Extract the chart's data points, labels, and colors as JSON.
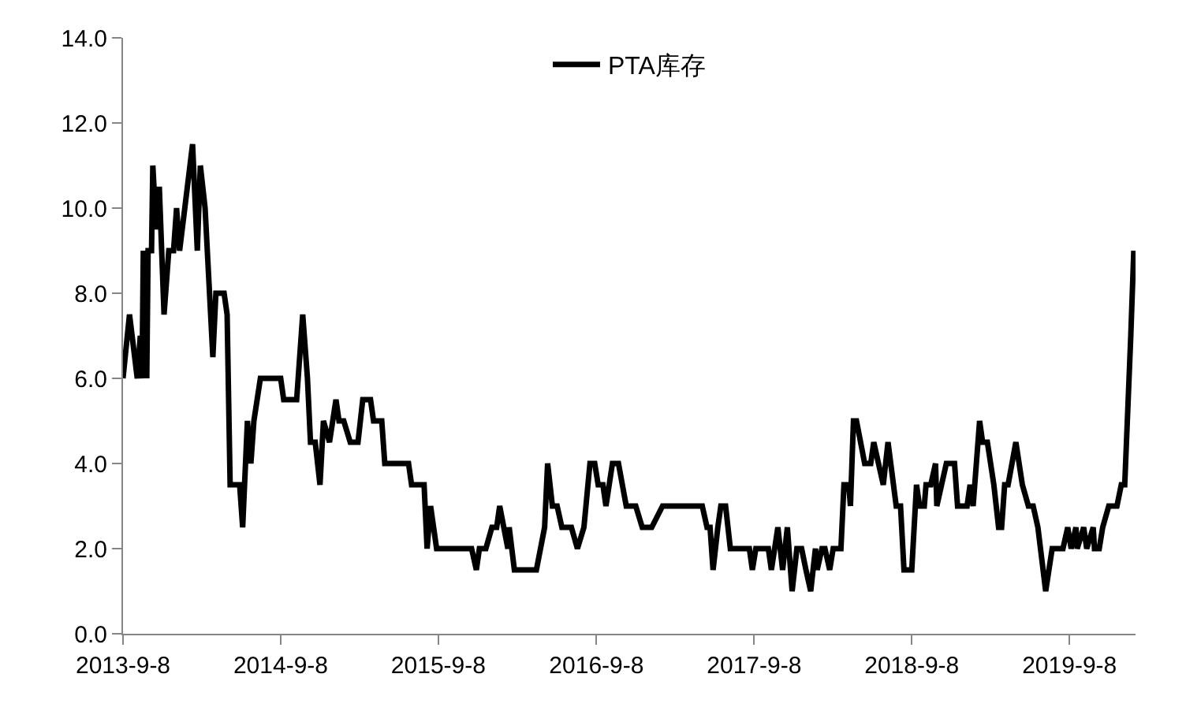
{
  "chart_data": {
    "type": "line",
    "x": [
      "2013-09-08",
      "2013-09-23",
      "2013-10-11",
      "2013-10-18",
      "2013-10-22",
      "2013-10-25",
      "2013-11-02",
      "2013-11-05",
      "2013-11-13",
      "2013-11-16",
      "2013-11-24",
      "2013-12-01",
      "2013-12-12",
      "2013-12-23",
      "2014-01-03",
      "2014-01-10",
      "2014-01-17",
      "2014-02-16",
      "2014-02-27",
      "2014-03-06",
      "2014-03-17",
      "2014-04-04",
      "2014-04-11",
      "2014-04-30",
      "2014-05-07",
      "2014-05-14",
      "2014-06-05",
      "2014-06-12",
      "2014-06-23",
      "2014-07-01",
      "2014-07-08",
      "2014-07-23",
      "2014-09-08",
      "2014-09-15",
      "2014-10-15",
      "2014-10-29",
      "2014-11-09",
      "2014-11-16",
      "2014-11-27",
      "2014-12-08",
      "2014-12-16",
      "2014-12-30",
      "2015-01-14",
      "2015-01-21",
      "2015-02-01",
      "2015-02-16",
      "2015-03-06",
      "2015-03-17",
      "2015-04-04",
      "2015-04-11",
      "2015-04-30",
      "2015-05-07",
      "2015-07-01",
      "2015-07-08",
      "2015-08-06",
      "2015-08-13",
      "2015-08-21",
      "2015-09-04",
      "2015-11-24",
      "2015-12-05",
      "2015-12-12",
      "2015-12-27",
      "2016-01-10",
      "2016-01-21",
      "2016-01-28",
      "2016-02-16",
      "2016-02-19",
      "2016-03-02",
      "2016-04-22",
      "2016-05-11",
      "2016-05-18",
      "2016-05-29",
      "2016-06-09",
      "2016-06-20",
      "2016-07-12",
      "2016-07-26",
      "2016-08-10",
      "2016-08-24",
      "2016-09-04",
      "2016-09-12",
      "2016-09-23",
      "2016-09-30",
      "2016-10-15",
      "2016-10-29",
      "2016-11-16",
      "2016-12-08",
      "2016-12-23",
      "2017-01-14",
      "2017-02-08",
      "2017-05-11",
      "2017-05-22",
      "2017-05-29",
      "2017-06-05",
      "2017-06-16",
      "2017-06-23",
      "2017-07-04",
      "2017-07-15",
      "2017-08-28",
      "2017-09-04",
      "2017-09-12",
      "2017-10-11",
      "2017-10-18",
      "2017-11-02",
      "2017-11-13",
      "2017-11-24",
      "2017-12-05",
      "2017-12-16",
      "2017-12-27",
      "2018-01-06",
      "2018-01-17",
      "2018-01-28",
      "2018-02-01",
      "2018-02-12",
      "2018-02-19",
      "2018-03-02",
      "2018-03-10",
      "2018-03-28",
      "2018-04-04",
      "2018-04-15",
      "2018-04-19",
      "2018-04-26",
      "2018-05-03",
      "2018-05-22",
      "2018-06-05",
      "2018-06-12",
      "2018-06-23",
      "2018-07-04",
      "2018-07-15",
      "2018-08-03",
      "2018-08-13",
      "2018-08-21",
      "2018-09-08",
      "2018-09-19",
      "2018-09-26",
      "2018-10-07",
      "2018-10-11",
      "2018-10-22",
      "2018-11-02",
      "2018-11-05",
      "2018-11-16",
      "2018-11-27",
      "2018-12-16",
      "2018-12-23",
      "2019-01-14",
      "2019-01-21",
      "2019-01-28",
      "2019-02-12",
      "2019-02-19",
      "2019-03-02",
      "2019-03-17",
      "2019-03-28",
      "2019-04-04",
      "2019-04-11",
      "2019-04-19",
      "2019-05-07",
      "2019-05-22",
      "2019-06-05",
      "2019-06-16",
      "2019-06-27",
      "2019-07-15",
      "2019-07-30",
      "2019-08-24",
      "2019-09-04",
      "2019-09-12",
      "2019-09-23",
      "2019-09-26",
      "2019-10-11",
      "2019-10-18",
      "2019-11-02",
      "2019-11-05",
      "2019-11-16",
      "2019-11-24",
      "2019-12-08",
      "2019-12-27",
      "2020-01-06",
      "2020-01-14",
      "2020-01-28",
      "2020-02-04"
    ],
    "series": [
      {
        "name": "PTA库存",
        "color": "#000000",
        "values": [
          6,
          7.5,
          6,
          7,
          6,
          9,
          6,
          9,
          9,
          11,
          9.5,
          10.5,
          7.5,
          9,
          9,
          10,
          9,
          11.5,
          9,
          11,
          10,
          6.5,
          8,
          8,
          7.5,
          3.5,
          3.5,
          2.5,
          5,
          4,
          5,
          6,
          6,
          5.5,
          5.5,
          7.5,
          6,
          4.5,
          4.5,
          3.5,
          5,
          4.5,
          5.5,
          5,
          5,
          4.5,
          4.5,
          5.5,
          5.5,
          5,
          5,
          4,
          4,
          3.5,
          3.5,
          2,
          3,
          2,
          2,
          1.5,
          2,
          2,
          2.5,
          2.5,
          3,
          2,
          2.5,
          1.5,
          1.5,
          2.5,
          4,
          3,
          3,
          2.5,
          2.5,
          2,
          2.5,
          4,
          4,
          3.5,
          3.5,
          3,
          4,
          4,
          3,
          3,
          2.5,
          2.5,
          3,
          3,
          2.5,
          2.5,
          1.5,
          2.5,
          3,
          3,
          2,
          2,
          1.5,
          2,
          2,
          1.5,
          2.5,
          1.5,
          2.5,
          1,
          2,
          2,
          1.5,
          1,
          2,
          1.5,
          2,
          2,
          1.5,
          2,
          2,
          3.5,
          3.5,
          3,
          5,
          5,
          4,
          4,
          4.5,
          4,
          3.5,
          4.5,
          3,
          3,
          1.5,
          1.5,
          3.5,
          3,
          3,
          3.5,
          3.5,
          4,
          3,
          3.5,
          4,
          4,
          3,
          3,
          3.5,
          3,
          5,
          4.5,
          4.5,
          3.5,
          2.5,
          2.5,
          3.5,
          3.5,
          4.5,
          3.5,
          3,
          3,
          2.5,
          1,
          2,
          2,
          2.5,
          2,
          2.5,
          2,
          2.5,
          2,
          2.5,
          2,
          2,
          2.5,
          3,
          3,
          3.5,
          3.5,
          7,
          9
        ]
      }
    ],
    "xlim": [
      "2013-09-08",
      "2020-02-08"
    ],
    "xticks": [
      {
        "value": "2013-09-08",
        "label": "2013-9-8"
      },
      {
        "value": "2014-09-08",
        "label": "2014-9-8"
      },
      {
        "value": "2015-09-08",
        "label": "2015-9-8"
      },
      {
        "value": "2016-09-08",
        "label": "2016-9-8"
      },
      {
        "value": "2017-09-08",
        "label": "2017-9-8"
      },
      {
        "value": "2018-09-08",
        "label": "2018-9-8"
      },
      {
        "value": "2019-09-08",
        "label": "2019-9-8"
      }
    ],
    "ylim": [
      0,
      14
    ],
    "yticks": [
      {
        "value": 0,
        "label": "0.0"
      },
      {
        "value": 2,
        "label": "2.0"
      },
      {
        "value": 4,
        "label": "4.0"
      },
      {
        "value": 6,
        "label": "6.0"
      },
      {
        "value": 8,
        "label": "8.0"
      },
      {
        "value": 10,
        "label": "10.0"
      },
      {
        "value": 12,
        "label": "12.0"
      },
      {
        "value": 14,
        "label": "14.0"
      }
    ],
    "grid": false,
    "legend": "top",
    "marker": "none",
    "line_style": "solid"
  }
}
